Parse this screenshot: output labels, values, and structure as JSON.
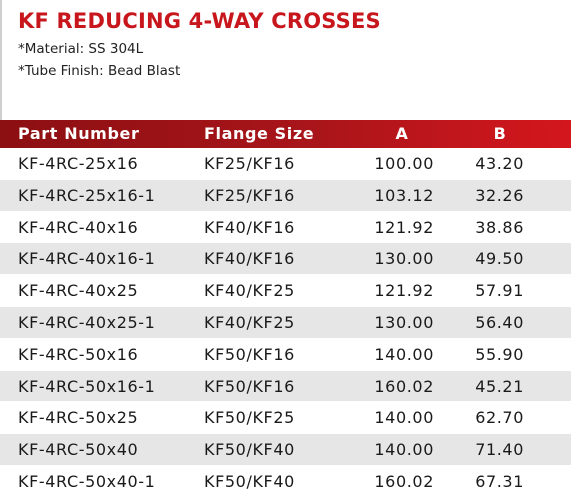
{
  "title": "KF REDUCING 4-WAY CROSSES",
  "notes": {
    "material": "*Material: SS 304L",
    "finish": "*Tube Finish: Bead Blast"
  },
  "table": {
    "headers": {
      "part": "Part Number",
      "flange": "Flange Size",
      "a": "A",
      "b": "B"
    },
    "rows": [
      {
        "part": "KF-4RC-25x16",
        "flange": "KF25/KF16",
        "a": "100.00",
        "b": "43.20"
      },
      {
        "part": "KF-4RC-25x16-1",
        "flange": "KF25/KF16",
        "a": "103.12",
        "b": "32.26"
      },
      {
        "part": "KF-4RC-40x16",
        "flange": "KF40/KF16",
        "a": "121.92",
        "b": "38.86"
      },
      {
        "part": "KF-4RC-40x16-1",
        "flange": "KF40/KF16",
        "a": "130.00",
        "b": "49.50"
      },
      {
        "part": "KF-4RC-40x25",
        "flange": "KF40/KF25",
        "a": "121.92",
        "b": "57.91"
      },
      {
        "part": "KF-4RC-40x25-1",
        "flange": "KF40/KF25",
        "a": "130.00",
        "b": "56.40"
      },
      {
        "part": "KF-4RC-50x16",
        "flange": "KF50/KF16",
        "a": "140.00",
        "b": "55.90"
      },
      {
        "part": "KF-4RC-50x16-1",
        "flange": "KF50/KF16",
        "a": "160.02",
        "b": "45.21"
      },
      {
        "part": "KF-4RC-50x25",
        "flange": "KF50/KF25",
        "a": "140.00",
        "b": "62.70"
      },
      {
        "part": "KF-4RC-50x40",
        "flange": "KF50/KF40",
        "a": "140.00",
        "b": "71.40"
      },
      {
        "part": "KF-4RC-50x40-1",
        "flange": "KF50/KF40",
        "a": "160.02",
        "b": "67.31"
      }
    ]
  },
  "colors": {
    "accent": "#c8161d",
    "header_dark": "#8c0f12",
    "row_alt": "#e6e6e6"
  }
}
